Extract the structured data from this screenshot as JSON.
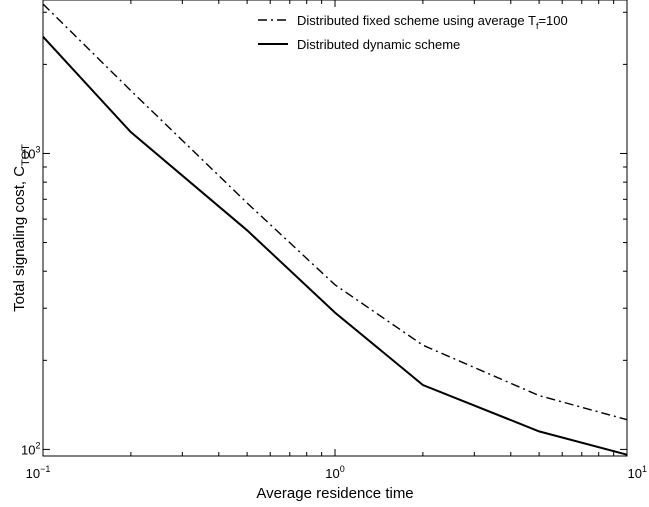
{
  "chart_data": {
    "type": "line",
    "xlabel": "Average residence time",
    "ylabel_main": "Total signaling cost, C",
    "ylabel_sub": "TOT",
    "xscale": "log",
    "yscale": "log",
    "xlim": [
      0.1,
      10
    ],
    "ylim": [
      95,
      3300
    ],
    "grid": false,
    "legend_position": "top-right",
    "x_ticks": [
      {
        "value": 0.1,
        "base": "10",
        "exp": "−1"
      },
      {
        "value": 1,
        "base": "10",
        "exp": "0"
      },
      {
        "value": 10,
        "base": "10",
        "exp": "1"
      }
    ],
    "y_ticks": [
      {
        "value": 100,
        "base": "10",
        "exp": "2"
      },
      {
        "value": 1000,
        "base": "10",
        "exp": "3"
      }
    ],
    "series": [
      {
        "legend_main": "Distributed fixed scheme using average T",
        "legend_sub": "f",
        "legend_tail": "=100",
        "style": "dashdot",
        "color": "#000000",
        "x": [
          0.1,
          0.2,
          0.5,
          1,
          2,
          5,
          10
        ],
        "y": [
          3200,
          1630,
          680,
          360,
          225,
          152,
          126
        ]
      },
      {
        "legend_main": "Distributed dynamic scheme",
        "legend_sub": "",
        "legend_tail": "",
        "style": "solid",
        "color": "#000000",
        "x": [
          0.1,
          0.2,
          0.5,
          1,
          2,
          5,
          10
        ],
        "y": [
          2480,
          1180,
          550,
          290,
          165,
          115,
          96
        ]
      }
    ]
  }
}
